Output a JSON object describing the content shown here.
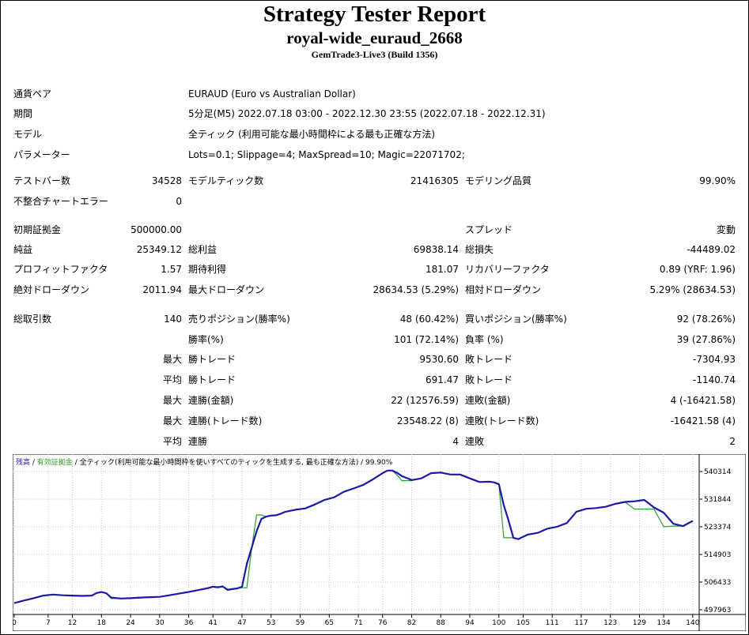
{
  "header": {
    "title": "Strategy Tester Report",
    "subtitle": "royal-wide_euraud_2668",
    "server": "GemTrade3-Live3 (Build 1356)"
  },
  "info": {
    "symbol_label": "通貨ペア",
    "symbol_value": "EURAUD (Euro vs Australian Dollar)",
    "period_label": "期間",
    "period_value": "5分足(M5) 2022.07.18 03:00 - 2022.12.30 23:55 (2022.07.18 - 2022.12.31)",
    "model_label": "モデル",
    "model_value": "全ティック (利用可能な最小時間枠による最も正確な方法)",
    "params_label": "パラメーター",
    "params_value": "Lots=0.1; Slippage=4; MaxSpread=10; Magic=22071702;"
  },
  "stats": {
    "bars_label": "テストバー数",
    "bars_value": "34528",
    "ticks_label": "モデルティック数",
    "ticks_value": "21416305",
    "quality_label": "モデリング品質",
    "quality_value": "99.90%",
    "mismatch_label": "不整合チャートエラー",
    "mismatch_value": "0",
    "deposit_label": "初期証拠金",
    "deposit_value": "500000.00",
    "spread_label": "スプレッド",
    "spread_value": "変動",
    "net_label": "純益",
    "net_value": "25349.12",
    "gross_profit_label": "総利益",
    "gross_profit_value": "69838.14",
    "gross_loss_label": "総損失",
    "gross_loss_value": "-44489.02",
    "pf_label": "プロフィットファクタ",
    "pf_value": "1.57",
    "expected_label": "期待利得",
    "expected_value": "181.07",
    "recovery_label": "リカバリーファクタ",
    "recovery_value": "0.89 (YRF: 1.96)",
    "abs_dd_label": "絶対ドローダウン",
    "abs_dd_value": "2011.94",
    "max_dd_label": "最大ドローダウン",
    "max_dd_value": "28634.53 (5.29%)",
    "rel_dd_label": "相対ドローダウン",
    "rel_dd_value": "5.29% (28634.53)",
    "trades_label": "総取引数",
    "trades_value": "140",
    "short_label": "売りポジション(勝率%)",
    "short_value": "48 (60.42%)",
    "long_label": "買いポジション(勝率%)",
    "long_value": "92 (78.26%)",
    "winrate_label": "勝率(%)",
    "winrate_value": "101 (72.14%)",
    "lossrate_label": "負率 (%)",
    "lossrate_value": "39 (27.86%)",
    "max_label": "最大",
    "avg_label": "平均",
    "win_trade_label": "勝トレード",
    "win_trade_max": "9530.60",
    "win_trade_avg": "691.47",
    "loss_trade_label": "敗トレード",
    "loss_trade_max": "-7304.93",
    "loss_trade_avg": "-1140.74",
    "cons_win_amt_label": "連勝(金額)",
    "cons_win_amt_value": "22 (12576.59)",
    "cons_loss_amt_label": "連敗(金額)",
    "cons_loss_amt_value": "4 (-16421.58)",
    "cons_win_cnt_label": "連勝(トレード数)",
    "cons_win_cnt_value": "23548.22 (8)",
    "cons_loss_cnt_label": "連敗(トレード数)",
    "cons_loss_cnt_value": "-16421.58 (4)",
    "avg_win_streak_label": "連勝",
    "avg_win_streak_value": "4",
    "avg_loss_streak_label": "連敗",
    "avg_loss_streak_value": "2"
  },
  "chart_legend": {
    "balance": "残高",
    "sep1": " / ",
    "equity": "有効証拠金",
    "sep2": " / ",
    "model": "全ティック(利用可能な最小時間枠を使いすべてのティックを生成する, 最も正確な方法)",
    "sep3": " / ",
    "quality": "99.90%"
  },
  "chart_data": {
    "type": "line",
    "colors": {
      "balance": "#1a1aa6",
      "equity": "#2e9e2e",
      "background": "#ffffff",
      "grid": "#c8c8c8"
    },
    "ylim": [
      497963,
      544000
    ],
    "y_ticks": [
      "540314",
      "531844",
      "523374",
      "514903",
      "506433",
      "497963"
    ],
    "x_ticks": [
      "0",
      "7",
      "12",
      "18",
      "24",
      "30",
      "36",
      "41",
      "47",
      "53",
      "59",
      "65",
      "71",
      "76",
      "82",
      "88",
      "94",
      "100",
      "105",
      "111",
      "117",
      "123",
      "129",
      "134",
      "140"
    ],
    "x": [
      0,
      2,
      4,
      6,
      8,
      10,
      12,
      14,
      16,
      17,
      18,
      19,
      20,
      22,
      24,
      26,
      28,
      30,
      32,
      34,
      36,
      38,
      40,
      41,
      42,
      43,
      44,
      46,
      47,
      48,
      49,
      50,
      51,
      52,
      53,
      54,
      55,
      56,
      58,
      60,
      62,
      64,
      66,
      68,
      70,
      72,
      74,
      76,
      77,
      78,
      79,
      80,
      82,
      84,
      86,
      88,
      90,
      92,
      94,
      96,
      98,
      99,
      100,
      101,
      102,
      103,
      104,
      106,
      108,
      110,
      112,
      114,
      116,
      118,
      120,
      122,
      124,
      126,
      128,
      130,
      132,
      134,
      136,
      138,
      140
    ],
    "series": [
      {
        "name": "残高",
        "values": [
          500000,
          500800,
          501500,
          502300,
          502600,
          502400,
          502300,
          502200,
          502300,
          503100,
          503400,
          503000,
          501700,
          501400,
          501500,
          501700,
          501800,
          501900,
          502400,
          502900,
          503400,
          504000,
          504600,
          505000,
          504800,
          505100,
          504100,
          504500,
          505000,
          512000,
          517000,
          522000,
          525800,
          526500,
          526800,
          526900,
          527400,
          528000,
          528600,
          529000,
          530200,
          531600,
          532400,
          534100,
          535100,
          536200,
          537900,
          539800,
          540600,
          540600,
          539900,
          538900,
          537700,
          538200,
          539800,
          540000,
          539400,
          539400,
          538200,
          537100,
          537200,
          537000,
          536400,
          530000,
          525300,
          520000,
          519600,
          521000,
          521500,
          522800,
          523400,
          524500,
          528000,
          528900,
          529100,
          529500,
          530400,
          531000,
          531200,
          531600,
          529300,
          527700,
          524300,
          523600,
          525200
        ]
      },
      {
        "name": "有効証拠金",
        "values": [
          500000,
          500800,
          501500,
          502300,
          502600,
          502400,
          502300,
          502200,
          502300,
          503100,
          503400,
          503000,
          501400,
          501400,
          501500,
          501700,
          501800,
          501900,
          502400,
          502900,
          503400,
          504000,
          504600,
          505000,
          505000,
          505100,
          503900,
          504500,
          504700,
          504700,
          517000,
          527000,
          527000,
          526500,
          526800,
          526900,
          527400,
          528000,
          528600,
          529000,
          530200,
          531600,
          532400,
          534100,
          535100,
          536200,
          537900,
          539800,
          540600,
          540600,
          539200,
          537500,
          537500,
          538200,
          539800,
          540000,
          539400,
          539400,
          538200,
          537100,
          537200,
          537000,
          536400,
          520000,
          520000,
          520000,
          519600,
          521000,
          521500,
          522800,
          523400,
          524500,
          528000,
          528900,
          529100,
          529500,
          530400,
          531000,
          528800,
          528800,
          528800,
          523400,
          523600,
          523600,
          525200
        ]
      }
    ]
  }
}
